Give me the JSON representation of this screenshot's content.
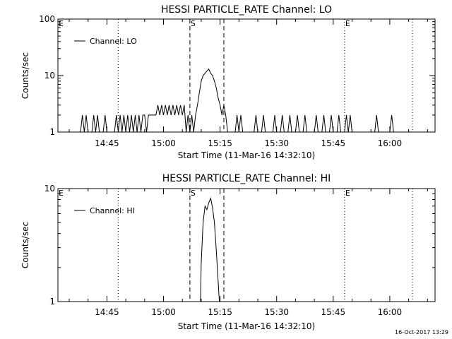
{
  "timestamp": "16-Oct-2017 13:29",
  "chart_data": [
    {
      "type": "line",
      "title": "HESSI PARTICLE_RATE Channel: LO",
      "xlabel": "Start Time (11-Mar-16 14:32:10)",
      "ylabel": "Counts/sec",
      "y_scale": "log",
      "ylim": [
        1,
        100
      ],
      "y_ticks": [
        {
          "value": 1,
          "label": "1"
        },
        {
          "value": 10,
          "label": "10"
        },
        {
          "value": 100,
          "label": "100"
        }
      ],
      "xlim": [
        "14:32",
        "16:12"
      ],
      "x_ticks": [
        {
          "value": "14:45",
          "label": "14:45"
        },
        {
          "value": "15:00",
          "label": "15:00"
        },
        {
          "value": "15:15",
          "label": "15:15"
        },
        {
          "value": "15:30",
          "label": "15:30"
        },
        {
          "value": "15:45",
          "label": "15:45"
        },
        {
          "value": "16:00",
          "label": "16:00"
        }
      ],
      "legend": {
        "position": "top-left",
        "entries": [
          "Channel: LO"
        ]
      },
      "markers": [
        {
          "time": "14:32",
          "label": "E",
          "style": "dotted"
        },
        {
          "time": "14:48",
          "label": "",
          "style": "dotted"
        },
        {
          "time": "15:07",
          "label": "S",
          "style": "dashed"
        },
        {
          "time": "15:16",
          "label": "",
          "style": "dashed"
        },
        {
          "time": "15:48",
          "label": "E",
          "style": "dotted"
        },
        {
          "time": "16:06",
          "label": "",
          "style": "dotted"
        }
      ],
      "series": [
        {
          "name": "Channel: LO",
          "points": [
            [
              "14:32",
              1
            ],
            [
              "14:38",
              1
            ],
            [
              "14:38.5",
              2
            ],
            [
              "14:39",
              1
            ],
            [
              "14:39.5",
              2
            ],
            [
              "14:40",
              1
            ],
            [
              "14:41",
              1
            ],
            [
              "14:41.5",
              2
            ],
            [
              "14:42",
              1
            ],
            [
              "14:42.5",
              2
            ],
            [
              "14:43",
              1
            ],
            [
              "14:44",
              1
            ],
            [
              "14:44.5",
              2
            ],
            [
              "14:45",
              1
            ],
            [
              "14:47",
              1
            ],
            [
              "14:47.5",
              2
            ],
            [
              "14:48",
              1
            ],
            [
              "14:48.5",
              2
            ],
            [
              "14:49",
              1
            ],
            [
              "14:49.5",
              2
            ],
            [
              "14:50",
              1
            ],
            [
              "14:50.5",
              2
            ],
            [
              "14:51",
              1
            ],
            [
              "14:51.5",
              2
            ],
            [
              "14:52",
              1
            ],
            [
              "14:52.5",
              2
            ],
            [
              "14:53",
              1
            ],
            [
              "14:53.5",
              2
            ],
            [
              "14:54",
              1
            ],
            [
              "14:54.5",
              2
            ],
            [
              "14:55",
              2
            ],
            [
              "14:55.5",
              1
            ],
            [
              "14:56",
              2
            ],
            [
              "14:56.5",
              2
            ],
            [
              "14:57",
              2
            ],
            [
              "14:57.5",
              2
            ],
            [
              "14:58",
              2
            ],
            [
              "14:58.5",
              3
            ],
            [
              "14:59",
              2
            ],
            [
              "14:59.5",
              3
            ],
            [
              "15:00",
              2
            ],
            [
              "15:00.5",
              3
            ],
            [
              "15:01",
              2
            ],
            [
              "15:01.5",
              3
            ],
            [
              "15:02",
              2
            ],
            [
              "15:02.5",
              3
            ],
            [
              "15:03",
              2
            ],
            [
              "15:03.5",
              3
            ],
            [
              "15:04",
              2
            ],
            [
              "15:04.5",
              3
            ],
            [
              "15:05",
              2
            ],
            [
              "15:05.5",
              3
            ],
            [
              "15:06",
              1
            ],
            [
              "15:06.5",
              2
            ],
            [
              "15:07",
              1
            ],
            [
              "15:07.5",
              2
            ],
            [
              "15:08",
              1
            ],
            [
              "15:08.5",
              2
            ],
            [
              "15:09",
              3
            ],
            [
              "15:09.5",
              5
            ],
            [
              "15:10",
              8
            ],
            [
              "15:10.5",
              10
            ],
            [
              "15:11",
              11
            ],
            [
              "15:11.5",
              12
            ],
            [
              "15:12",
              13
            ],
            [
              "15:12.5",
              11
            ],
            [
              "15:13",
              10
            ],
            [
              "15:13.5",
              8
            ],
            [
              "15:14",
              6
            ],
            [
              "15:14.5",
              4
            ],
            [
              "15:15",
              3
            ],
            [
              "15:15.5",
              2
            ],
            [
              "15:16",
              3
            ],
            [
              "15:16.5",
              2
            ],
            [
              "15:17",
              1
            ],
            [
              "15:19",
              1
            ],
            [
              "15:19.5",
              2
            ],
            [
              "15:20",
              1
            ],
            [
              "15:20.5",
              2
            ],
            [
              "15:21",
              1
            ],
            [
              "15:24",
              1
            ],
            [
              "15:24.5",
              2
            ],
            [
              "15:25",
              1
            ],
            [
              "15:26",
              1
            ],
            [
              "15:26.5",
              2
            ],
            [
              "15:27",
              1
            ],
            [
              "15:29",
              1
            ],
            [
              "15:29.5",
              2
            ],
            [
              "15:30",
              1
            ],
            [
              "15:31",
              1
            ],
            [
              "15:31.5",
              2
            ],
            [
              "15:32",
              1
            ],
            [
              "15:33",
              1
            ],
            [
              "15:33.5",
              2
            ],
            [
              "15:34",
              1
            ],
            [
              "15:35",
              1
            ],
            [
              "15:35.5",
              2
            ],
            [
              "15:36",
              1
            ],
            [
              "15:37",
              1
            ],
            [
              "15:37.5",
              2
            ],
            [
              "15:38",
              1
            ],
            [
              "15:40",
              1
            ],
            [
              "15:40.5",
              2
            ],
            [
              "15:41",
              1
            ],
            [
              "15:42",
              1
            ],
            [
              "15:42.5",
              2
            ],
            [
              "15:43",
              1
            ],
            [
              "15:44",
              1
            ],
            [
              "15:44.5",
              2
            ],
            [
              "15:45",
              1
            ],
            [
              "15:46",
              1
            ],
            [
              "15:46.5",
              2
            ],
            [
              "15:47",
              1
            ],
            [
              "15:48",
              1
            ],
            [
              "15:48.5",
              2
            ],
            [
              "15:49",
              1
            ],
            [
              "15:49.5",
              2
            ],
            [
              "15:50",
              1
            ],
            [
              "15:56",
              1
            ],
            [
              "15:56.5",
              2
            ],
            [
              "15:57",
              1
            ],
            [
              "16:00",
              1
            ],
            [
              "16:00.5",
              2
            ],
            [
              "16:01",
              1
            ],
            [
              "16:12",
              1
            ]
          ]
        }
      ]
    },
    {
      "type": "line",
      "title": "HESSI PARTICLE_RATE Channel: HI",
      "xlabel": "Start Time (11-Mar-16 14:32:10)",
      "ylabel": "Counts/sec",
      "y_scale": "log",
      "ylim": [
        1,
        10
      ],
      "y_ticks": [
        {
          "value": 1,
          "label": "1"
        },
        {
          "value": 10,
          "label": "10"
        }
      ],
      "xlim": [
        "14:32",
        "16:12"
      ],
      "x_ticks": [
        {
          "value": "14:45",
          "label": "14:45"
        },
        {
          "value": "15:00",
          "label": "15:00"
        },
        {
          "value": "15:15",
          "label": "15:15"
        },
        {
          "value": "15:30",
          "label": "15:30"
        },
        {
          "value": "15:45",
          "label": "15:45"
        },
        {
          "value": "16:00",
          "label": "16:00"
        }
      ],
      "legend": {
        "position": "top-left",
        "entries": [
          "Channel: HI"
        ]
      },
      "markers": [
        {
          "time": "14:32",
          "label": "E",
          "style": "dotted"
        },
        {
          "time": "14:48",
          "label": "",
          "style": "dotted"
        },
        {
          "time": "15:07",
          "label": "S",
          "style": "dashed"
        },
        {
          "time": "15:16",
          "label": "",
          "style": "dashed"
        },
        {
          "time": "15:48",
          "label": "E",
          "style": "dotted"
        },
        {
          "time": "16:06",
          "label": "",
          "style": "dotted"
        }
      ],
      "series": [
        {
          "name": "Channel: HI",
          "points": [
            [
              "15:09.8",
              1
            ],
            [
              "15:10",
              2.2
            ],
            [
              "15:10.5",
              5
            ],
            [
              "15:11",
              7
            ],
            [
              "15:11.5",
              6.5
            ],
            [
              "15:12",
              7.5
            ],
            [
              "15:12.5",
              8.2
            ],
            [
              "15:13",
              6.8
            ],
            [
              "15:13.5",
              5
            ],
            [
              "15:14",
              2.8
            ],
            [
              "15:14.5",
              1.5
            ],
            [
              "15:14.8",
              1
            ]
          ]
        }
      ]
    }
  ]
}
